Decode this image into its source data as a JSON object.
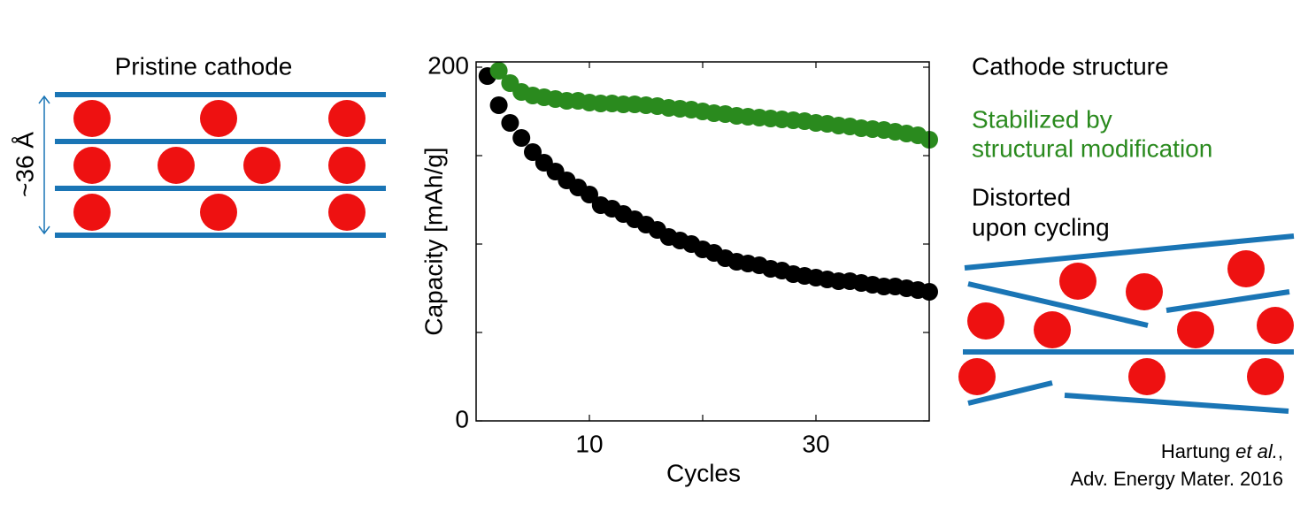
{
  "chart_data": {
    "type": "scatter",
    "xlabel": "Cycles",
    "ylabel": "Capacity [mAh/g]",
    "xlim": [
      0,
      40
    ],
    "ylim": [
      0,
      203
    ],
    "xticks": [
      10,
      30
    ],
    "x_minor_ticks": [
      20
    ],
    "yticks": [
      0,
      200
    ],
    "y_minor_ticks": [
      50,
      100,
      150
    ],
    "series": [
      {
        "name": "Distorted upon cycling",
        "color": "#000000",
        "x": [
          1,
          2,
          3,
          4,
          5,
          6,
          7,
          8,
          9,
          10,
          11,
          12,
          13,
          14,
          15,
          16,
          17,
          18,
          19,
          20,
          21,
          22,
          23,
          24,
          25,
          26,
          27,
          28,
          29,
          30,
          31,
          32,
          33,
          34,
          35,
          36,
          37,
          38,
          39,
          40
        ],
        "values": [
          195,
          178.5,
          168.5,
          160,
          152,
          146,
          141,
          136,
          132,
          128,
          122,
          120,
          117,
          114,
          111,
          108,
          104,
          102,
          100,
          97,
          95,
          92,
          90,
          89,
          88,
          86,
          85,
          83,
          82,
          81,
          80,
          79,
          79,
          78,
          77,
          76,
          76,
          75,
          74,
          73
        ]
      },
      {
        "name": "Stabilized by structural modification",
        "color": "#2a8a1e",
        "x": [
          2,
          3,
          4,
          5,
          6,
          7,
          8,
          9,
          10,
          11,
          12,
          13,
          14,
          15,
          16,
          17,
          18,
          19,
          20,
          21,
          22,
          23,
          24,
          25,
          26,
          27,
          28,
          29,
          30,
          31,
          32,
          33,
          34,
          35,
          36,
          37,
          38,
          39,
          40
        ],
        "values": [
          198,
          191,
          186,
          184,
          183,
          182,
          181,
          181,
          180,
          179.5,
          179.5,
          179,
          179,
          178.5,
          178,
          177,
          176.5,
          176,
          175,
          174,
          173.5,
          172.5,
          172,
          171.5,
          171,
          170.5,
          170,
          169.5,
          168.5,
          168,
          167,
          166.5,
          165.5,
          165,
          164.5,
          163.5,
          162.5,
          161.5,
          159
        ]
      }
    ]
  },
  "left_diagram": {
    "title": "Pristine cathode",
    "spacing_label": "~36 Å"
  },
  "right_diagram": {
    "title": "Cathode structure",
    "stabilized": [
      "Stabilized by",
      "structural modification"
    ],
    "distorted": [
      "Distorted",
      "upon cycling"
    ]
  },
  "citation": {
    "author": "Hartung",
    "etal": "et al.",
    "comma": ",",
    "journal": "Adv. Energy Mater. 2016"
  }
}
